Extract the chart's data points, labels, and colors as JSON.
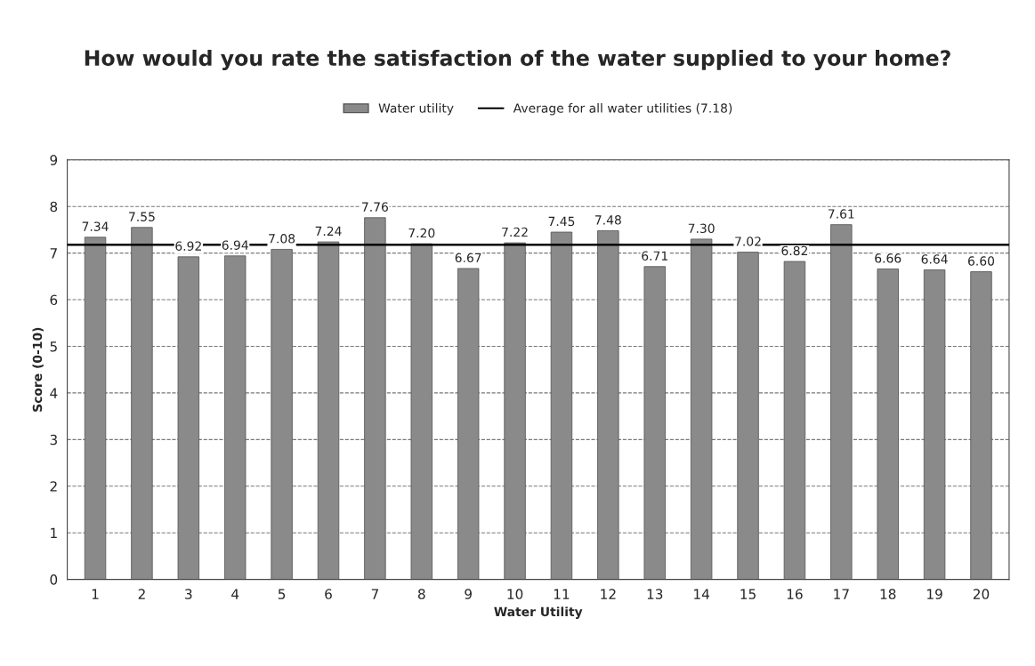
{
  "chart_data": {
    "type": "bar",
    "title": "How would you rate the satisfaction of the water supplied to your home?",
    "xlabel": "Water Utility",
    "ylabel": "Score (0-10)",
    "categories": [
      "1",
      "2",
      "3",
      "4",
      "5",
      "6",
      "7",
      "8",
      "9",
      "10",
      "11",
      "12",
      "13",
      "14",
      "15",
      "16",
      "17",
      "18",
      "19",
      "20"
    ],
    "series": [
      {
        "name": "Water utility",
        "color": "#8a8a8a",
        "values": [
          7.34,
          7.55,
          6.92,
          6.94,
          7.08,
          7.24,
          7.76,
          7.2,
          6.67,
          7.22,
          7.45,
          7.48,
          6.71,
          7.3,
          7.02,
          6.82,
          7.61,
          6.66,
          6.64,
          6.6
        ],
        "value_labels": [
          "7.34",
          "7.55",
          "6.92",
          "6.94",
          "7.08",
          "7.24",
          "7.76",
          "7.20",
          "6.67",
          "7.22",
          "7.45",
          "7.48",
          "6.71",
          "7.30",
          "7.02",
          "6.82",
          "7.61",
          "6.66",
          "6.64",
          "6.60"
        ]
      }
    ],
    "ref_lines": [
      {
        "axis": "y",
        "value": 7.18,
        "label": "Average for all water utilities (7.18)",
        "color": "#000000",
        "line_style": "solid"
      }
    ],
    "ylim": [
      0,
      9
    ],
    "yticks": [
      0,
      1,
      2,
      3,
      4,
      5,
      6,
      7,
      8,
      9
    ],
    "grid": "y",
    "legend": "top"
  }
}
